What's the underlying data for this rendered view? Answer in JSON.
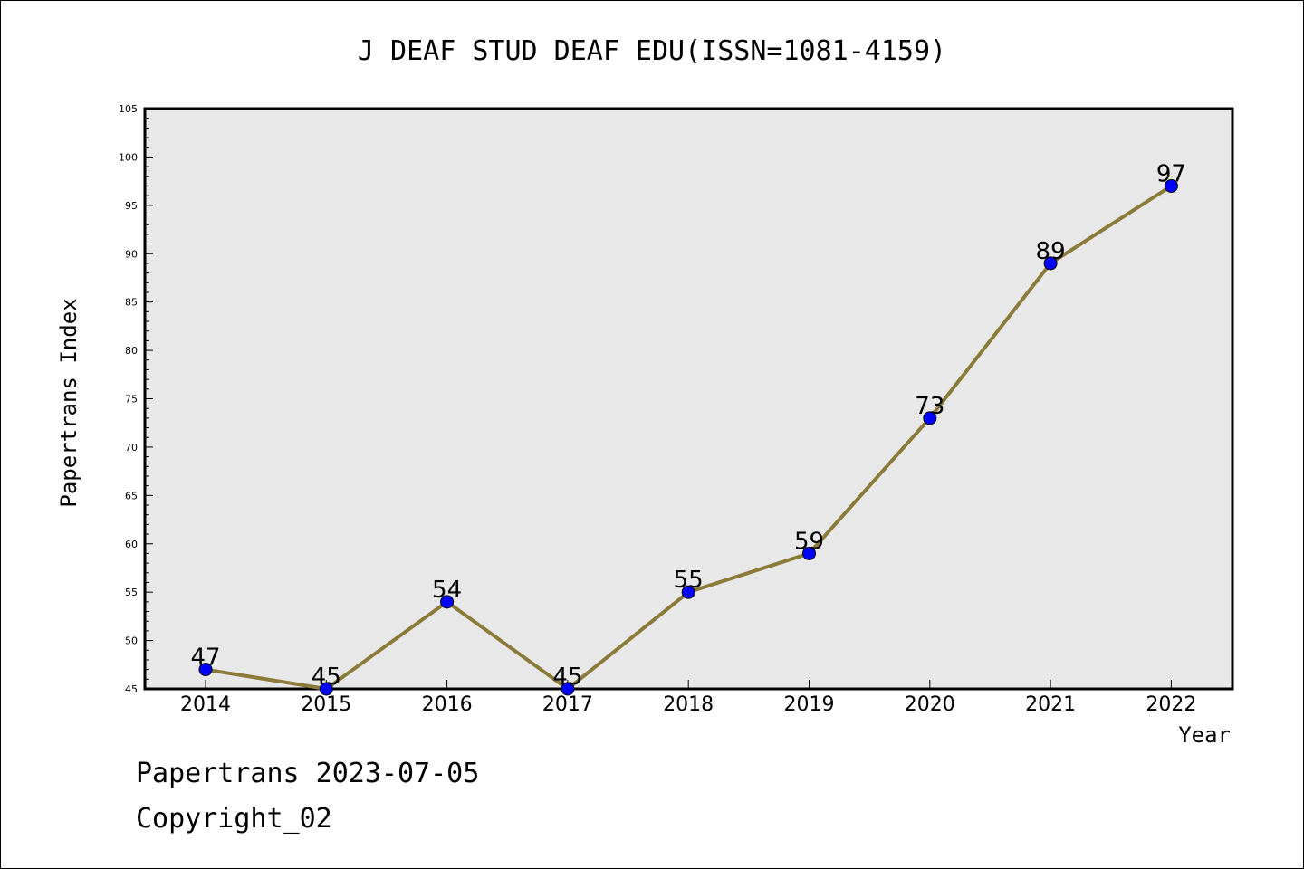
{
  "chart_data": {
    "type": "line",
    "title": "J DEAF STUD DEAF EDU(ISSN=1081-4159)",
    "xlabel": "Year",
    "ylabel": "Papertrans Index",
    "categories": [
      "2014",
      "2015",
      "2016",
      "2017",
      "2018",
      "2019",
      "2020",
      "2021",
      "2022"
    ],
    "series": [
      {
        "values": [
          47,
          45,
          54,
          45,
          55,
          59,
          73,
          89,
          97
        ]
      }
    ],
    "data_labels": [
      "47",
      "45",
      "54",
      "45",
      "55",
      "59",
      "73",
      "89",
      "97"
    ],
    "y_ticks": [
      "45",
      "50",
      "55",
      "60",
      "65",
      "70",
      "75",
      "80",
      "85",
      "90",
      "95",
      "100",
      "105"
    ],
    "ylim": [
      45,
      105
    ],
    "y_minor_step": 1,
    "grid": false,
    "line_color": "#8b7b3a",
    "marker_color": "#0000ff",
    "plot_background": "#e8e8e8"
  },
  "footer": {
    "line1": "Papertrans 2023-07-05",
    "line2": "Copyright_02"
  }
}
